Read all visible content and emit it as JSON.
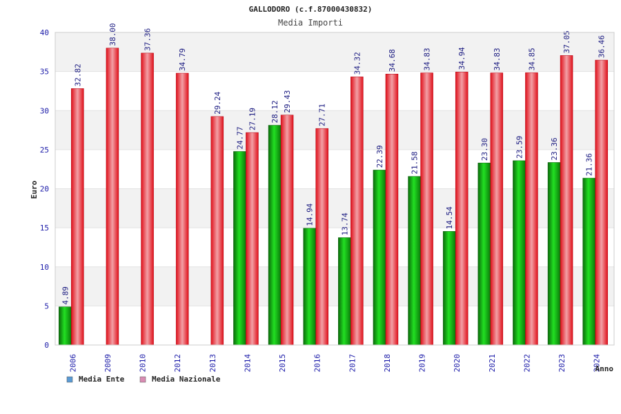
{
  "chart_data": {
    "type": "bar",
    "title": "GALLODORO (c.f.87000430832)",
    "subtitle": "Media Importi",
    "xlabel": "Anno",
    "ylabel": "Euro",
    "ylim": [
      0,
      40
    ],
    "yticks": [
      0,
      5,
      10,
      15,
      20,
      25,
      30,
      35,
      40
    ],
    "grid": true,
    "legend_position": "bottom-left",
    "categories": [
      "2006",
      "2009",
      "2010",
      "2012",
      "2013",
      "2014",
      "2015",
      "2016",
      "2017",
      "2018",
      "2019",
      "2020",
      "2021",
      "2022",
      "2023",
      "2024"
    ],
    "series": [
      {
        "name": "Media Ente",
        "color": "#1aa01a",
        "legend_color": "#5b9bd5",
        "values": [
          4.89,
          null,
          null,
          null,
          null,
          24.77,
          28.12,
          14.94,
          13.74,
          22.39,
          21.58,
          14.54,
          23.3,
          23.59,
          23.36,
          21.36
        ],
        "labels": [
          "4.89",
          "",
          "",
          "",
          "",
          "24.77",
          "28.12",
          "14.94",
          "13.74",
          "22.39",
          "21.58",
          "14.54",
          "23.30",
          "23.59",
          "23.36",
          "21.36"
        ]
      },
      {
        "name": "Media Nazionale",
        "color": "#e8202a",
        "legend_color": "#d98cb3",
        "values": [
          32.82,
          38.0,
          37.36,
          34.79,
          29.24,
          27.19,
          29.43,
          27.71,
          34.32,
          34.68,
          34.83,
          34.94,
          34.83,
          34.85,
          37.05,
          36.46
        ],
        "labels": [
          "32.82",
          "38.00",
          "37.36",
          "34.79",
          "29.24",
          "27.19",
          "29.43",
          "27.71",
          "34.32",
          "34.68",
          "34.83",
          "34.94",
          "34.83",
          "34.85",
          "37.05",
          "36.46"
        ]
      }
    ]
  }
}
